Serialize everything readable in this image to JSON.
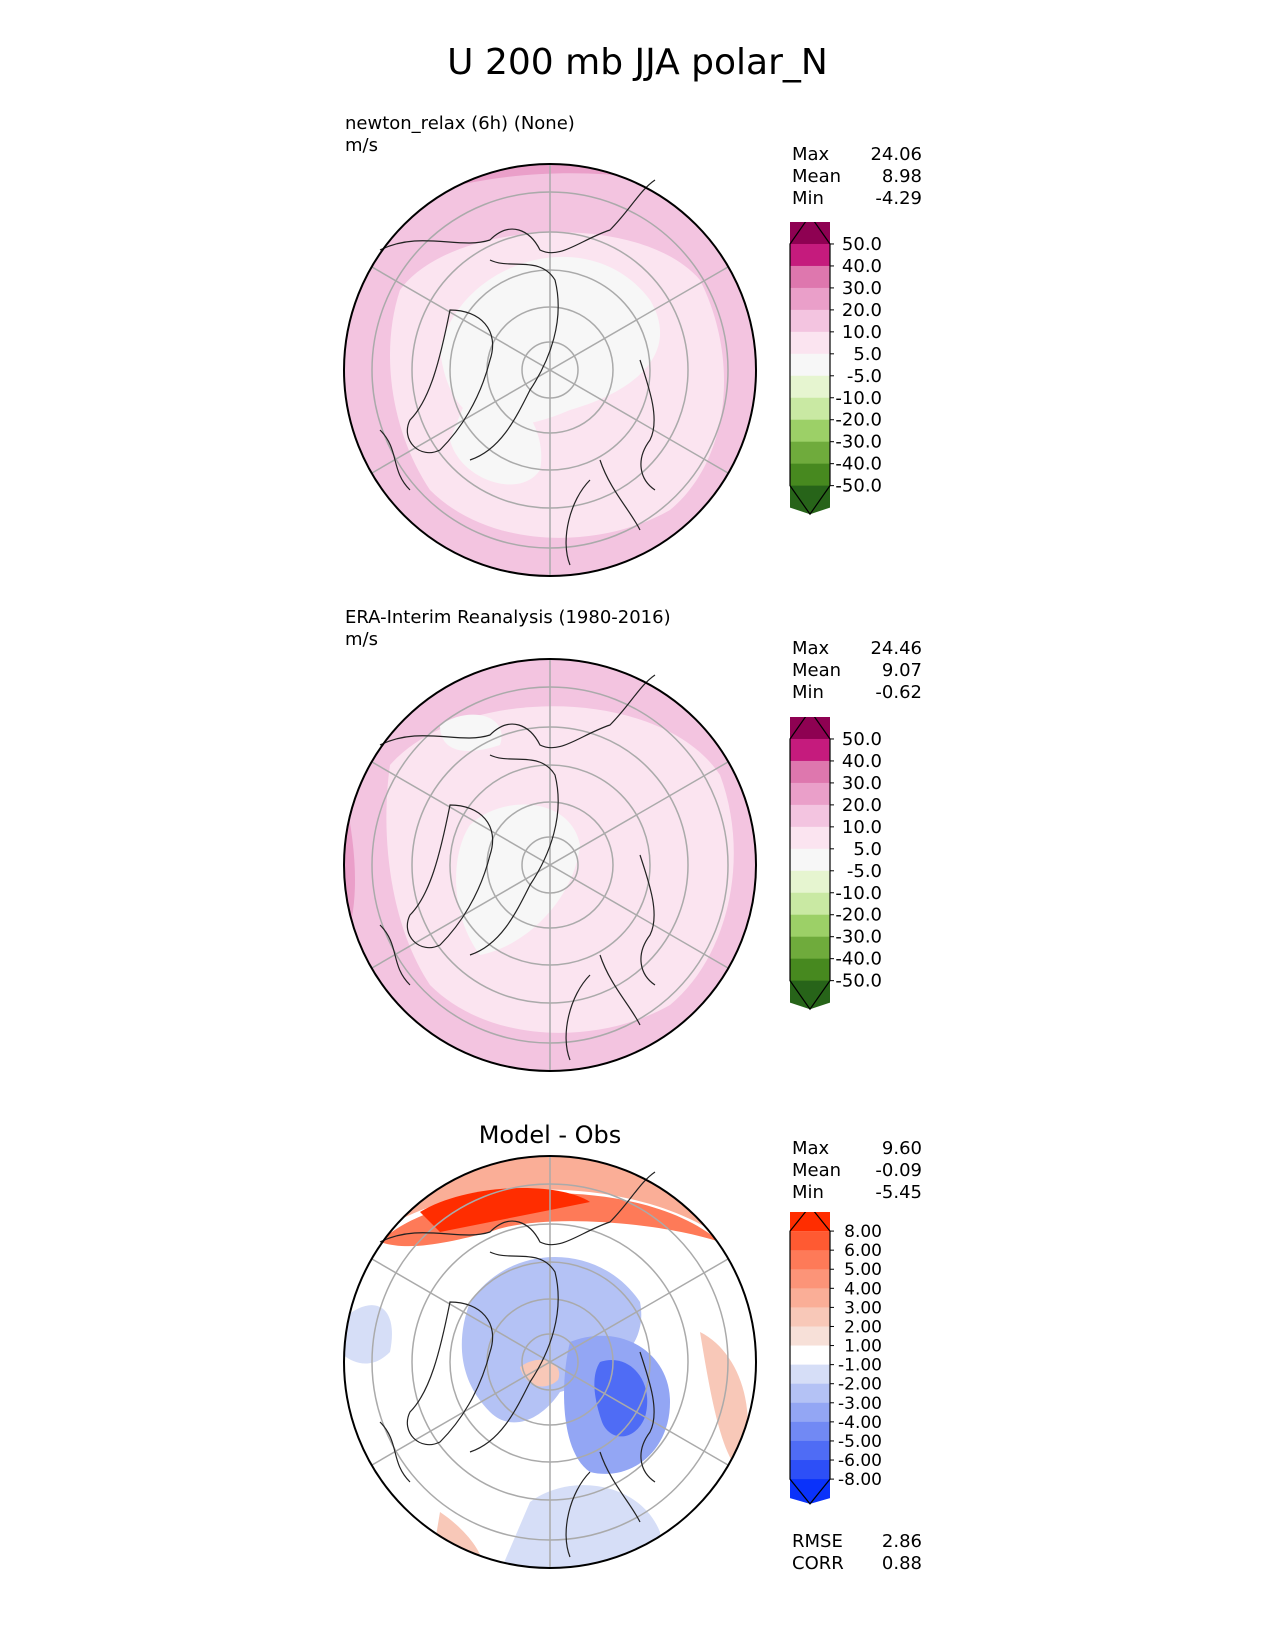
{
  "figure": {
    "title": "U 200 mb JJA polar_N"
  },
  "panels": [
    {
      "id": "test",
      "label": "newton_relax (6h) (None)",
      "units": "m/s",
      "stats": [
        {
          "name": "Max",
          "value": "24.06"
        },
        {
          "name": "Mean",
          "value": "8.98"
        },
        {
          "name": "Min",
          "value": "-4.29"
        }
      ]
    },
    {
      "id": "ref",
      "label": "ERA-Interim Reanalysis (1980-2016)",
      "units": "m/s",
      "stats": [
        {
          "name": "Max",
          "value": "24.46"
        },
        {
          "name": "Mean",
          "value": "9.07"
        },
        {
          "name": "Min",
          "value": "-0.62"
        }
      ]
    },
    {
      "id": "diff",
      "title": "Model - Obs",
      "stats": [
        {
          "name": "Max",
          "value": "9.60"
        },
        {
          "name": "Mean",
          "value": "-0.09"
        },
        {
          "name": "Min",
          "value": "-5.45"
        }
      ],
      "metrics": [
        {
          "name": "RMSE",
          "value": "2.86"
        },
        {
          "name": "CORR",
          "value": "0.88"
        }
      ]
    }
  ],
  "chart_data": [
    {
      "type": "heatmap",
      "projection": "north-polar-stereographic",
      "title": "newton_relax (6h) (None)",
      "units": "m/s",
      "stats": {
        "max": 24.06,
        "mean": 8.98,
        "min": -4.29
      },
      "colorbar": {
        "extend": "both",
        "ticks": [
          "50.0",
          "40.0",
          "30.0",
          "20.0",
          "10.0",
          "5.0",
          "-5.0",
          "-10.0",
          "-20.0",
          "-30.0",
          "-40.0",
          "-50.0"
        ],
        "colors": [
          "#8e0152",
          "#c51b7d",
          "#de77ae",
          "#ea9fc9",
          "#f3c4e0",
          "#fbe4f0",
          "#f7f7f7",
          "#e6f5d0",
          "#c9e9a3",
          "#9cd067",
          "#6fab3c",
          "#47891f",
          "#276419"
        ]
      }
    },
    {
      "type": "heatmap",
      "projection": "north-polar-stereographic",
      "title": "ERA-Interim Reanalysis (1980-2016)",
      "units": "m/s",
      "stats": {
        "max": 24.46,
        "mean": 9.07,
        "min": -0.62
      },
      "colorbar": {
        "extend": "both",
        "ticks": [
          "50.0",
          "40.0",
          "30.0",
          "20.0",
          "10.0",
          "5.0",
          "-5.0",
          "-10.0",
          "-20.0",
          "-30.0",
          "-40.0",
          "-50.0"
        ],
        "colors": [
          "#8e0152",
          "#c51b7d",
          "#de77ae",
          "#ea9fc9",
          "#f3c4e0",
          "#fbe4f0",
          "#f7f7f7",
          "#e6f5d0",
          "#c9e9a3",
          "#9cd067",
          "#6fab3c",
          "#47891f",
          "#276419"
        ]
      }
    },
    {
      "type": "heatmap",
      "projection": "north-polar-stereographic",
      "title": "Model - Obs",
      "stats": {
        "max": 9.6,
        "mean": -0.09,
        "min": -5.45
      },
      "metrics": {
        "rmse": 2.86,
        "corr": 0.88
      },
      "colorbar": {
        "extend": "both",
        "ticks": [
          "8.00",
          "6.00",
          "5.00",
          "4.00",
          "3.00",
          "2.00",
          "1.00",
          "-1.00",
          "-2.00",
          "-3.00",
          "-4.00",
          "-5.00",
          "-6.00",
          "-8.00"
        ],
        "colors": [
          "#ff2d00",
          "#ff5a32",
          "#fe7a58",
          "#fc9478",
          "#faae97",
          "#f8c8b8",
          "#f7e0d8",
          "#ffffff",
          "#d6def7",
          "#b4c2f5",
          "#93a6f4",
          "#7189f4",
          "#4f6cf5",
          "#2d4ff7",
          "#0a32fa"
        ]
      }
    }
  ]
}
